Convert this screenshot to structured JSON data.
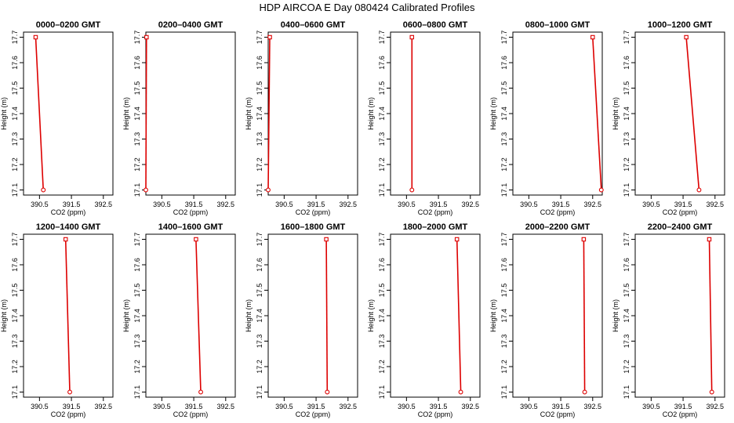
{
  "suptitle": "HDP  AIRCOA E  Day 080424  Calibrated Profiles",
  "colors": {
    "series": "#dd0000",
    "frame": "#000000"
  },
  "chart_data": [
    {
      "type": "line",
      "title": "0000–0200 GMT",
      "xlabel": "CO2 (ppm)",
      "ylabel": "Height (m)",
      "xlim": [
        390.0,
        392.8
      ],
      "ylim": [
        17.08,
        17.72
      ],
      "xticks": [
        "390.5",
        "391.5",
        "392.5"
      ],
      "yticks": [
        "17.1",
        "17.2",
        "17.3",
        "17.4",
        "17.5",
        "17.6",
        "17.7"
      ],
      "points": [
        {
          "x": 390.38,
          "y": 17.7
        },
        {
          "x": 390.62,
          "y": 17.1
        }
      ]
    },
    {
      "type": "line",
      "title": "0200–0400 GMT",
      "xlabel": "CO2 (ppm)",
      "ylabel": "Height (m)",
      "xlim": [
        390.0,
        392.8
      ],
      "ylim": [
        17.08,
        17.72
      ],
      "xticks": [
        "390.5",
        "391.5",
        "392.5"
      ],
      "yticks": [
        "17.1",
        "17.2",
        "17.3",
        "17.4",
        "17.5",
        "17.6",
        "17.7"
      ],
      "points": [
        {
          "x": 390.02,
          "y": 17.7
        },
        {
          "x": 390.0,
          "y": 17.1
        }
      ]
    },
    {
      "type": "line",
      "title": "0400–0600 GMT",
      "xlabel": "CO2 (ppm)",
      "ylabel": "Height (m)",
      "xlim": [
        390.0,
        392.8
      ],
      "ylim": [
        17.08,
        17.72
      ],
      "xticks": [
        "390.5",
        "391.5",
        "392.5"
      ],
      "yticks": [
        "17.1",
        "17.2",
        "17.3",
        "17.4",
        "17.5",
        "17.6",
        "17.7"
      ],
      "points": [
        {
          "x": 390.05,
          "y": 17.7
        },
        {
          "x": 390.0,
          "y": 17.1
        }
      ]
    },
    {
      "type": "line",
      "title": "0600–0800 GMT",
      "xlabel": "CO2 (ppm)",
      "ylabel": "Height (m)",
      "xlim": [
        390.0,
        392.8
      ],
      "ylim": [
        17.08,
        17.72
      ],
      "xticks": [
        "390.5",
        "391.5",
        "392.5"
      ],
      "yticks": [
        "17.1",
        "17.2",
        "17.3",
        "17.4",
        "17.5",
        "17.6",
        "17.7"
      ],
      "points": [
        {
          "x": 390.67,
          "y": 17.7
        },
        {
          "x": 390.67,
          "y": 17.1
        }
      ]
    },
    {
      "type": "line",
      "title": "0800–1000 GMT",
      "xlabel": "CO2 (ppm)",
      "ylabel": "Height (m)",
      "xlim": [
        390.0,
        392.8
      ],
      "ylim": [
        17.08,
        17.72
      ],
      "xticks": [
        "390.5",
        "391.5",
        "392.5"
      ],
      "yticks": [
        "17.1",
        "17.2",
        "17.3",
        "17.4",
        "17.5",
        "17.6",
        "17.7"
      ],
      "points": [
        {
          "x": 392.5,
          "y": 17.7
        },
        {
          "x": 392.77,
          "y": 17.1
        }
      ]
    },
    {
      "type": "line",
      "title": "1000–1200 GMT",
      "xlabel": "CO2 (ppm)",
      "ylabel": "Height (m)",
      "xlim": [
        390.0,
        392.8
      ],
      "ylim": [
        17.08,
        17.72
      ],
      "xticks": [
        "390.5",
        "391.5",
        "392.5"
      ],
      "yticks": [
        "17.1",
        "17.2",
        "17.3",
        "17.4",
        "17.5",
        "17.6",
        "17.7"
      ],
      "points": [
        {
          "x": 391.6,
          "y": 17.7
        },
        {
          "x": 392.0,
          "y": 17.1
        }
      ]
    },
    {
      "type": "line",
      "title": "1200–1400 GMT",
      "xlabel": "CO2 (ppm)",
      "ylabel": "Height (m)",
      "xlim": [
        390.0,
        392.8
      ],
      "ylim": [
        17.08,
        17.72
      ],
      "xticks": [
        "390.5",
        "391.5",
        "392.5"
      ],
      "yticks": [
        "17.1",
        "17.2",
        "17.3",
        "17.4",
        "17.5",
        "17.6",
        "17.7"
      ],
      "points": [
        {
          "x": 391.32,
          "y": 17.7
        },
        {
          "x": 391.45,
          "y": 17.1
        }
      ]
    },
    {
      "type": "line",
      "title": "1400–1600 GMT",
      "xlabel": "CO2 (ppm)",
      "ylabel": "Height (m)",
      "xlim": [
        390.0,
        392.8
      ],
      "ylim": [
        17.08,
        17.72
      ],
      "xticks": [
        "390.5",
        "391.5",
        "392.5"
      ],
      "yticks": [
        "17.1",
        "17.2",
        "17.3",
        "17.4",
        "17.5",
        "17.6",
        "17.7"
      ],
      "points": [
        {
          "x": 391.57,
          "y": 17.7
        },
        {
          "x": 391.72,
          "y": 17.1
        }
      ]
    },
    {
      "type": "line",
      "title": "1600–1800 GMT",
      "xlabel": "CO2 (ppm)",
      "ylabel": "Height (m)",
      "xlim": [
        390.0,
        392.8
      ],
      "ylim": [
        17.08,
        17.72
      ],
      "xticks": [
        "390.5",
        "391.5",
        "392.5"
      ],
      "yticks": [
        "17.1",
        "17.2",
        "17.3",
        "17.4",
        "17.5",
        "17.6",
        "17.7"
      ],
      "points": [
        {
          "x": 391.82,
          "y": 17.7
        },
        {
          "x": 391.85,
          "y": 17.1
        }
      ]
    },
    {
      "type": "line",
      "title": "1800–2000 GMT",
      "xlabel": "CO2 (ppm)",
      "ylabel": "Height (m)",
      "xlim": [
        390.0,
        392.8
      ],
      "ylim": [
        17.08,
        17.72
      ],
      "xticks": [
        "390.5",
        "391.5",
        "392.5"
      ],
      "yticks": [
        "17.1",
        "17.2",
        "17.3",
        "17.4",
        "17.5",
        "17.6",
        "17.7"
      ],
      "points": [
        {
          "x": 392.08,
          "y": 17.7
        },
        {
          "x": 392.2,
          "y": 17.1
        }
      ]
    },
    {
      "type": "line",
      "title": "2000–2200 GMT",
      "xlabel": "CO2 (ppm)",
      "ylabel": "Height (m)",
      "xlim": [
        390.0,
        392.8
      ],
      "ylim": [
        17.08,
        17.72
      ],
      "xticks": [
        "390.5",
        "391.5",
        "392.5"
      ],
      "yticks": [
        "17.1",
        "17.2",
        "17.3",
        "17.4",
        "17.5",
        "17.6",
        "17.7"
      ],
      "points": [
        {
          "x": 392.22,
          "y": 17.7
        },
        {
          "x": 392.25,
          "y": 17.1
        }
      ]
    },
    {
      "type": "line",
      "title": "2200–2400 GMT",
      "xlabel": "CO2 (ppm)",
      "ylabel": "Height (m)",
      "xlim": [
        390.0,
        392.8
      ],
      "ylim": [
        17.08,
        17.72
      ],
      "xticks": [
        "390.5",
        "391.5",
        "392.5"
      ],
      "yticks": [
        "17.1",
        "17.2",
        "17.3",
        "17.4",
        "17.5",
        "17.6",
        "17.7"
      ],
      "points": [
        {
          "x": 392.32,
          "y": 17.7
        },
        {
          "x": 392.4,
          "y": 17.1
        }
      ]
    }
  ]
}
